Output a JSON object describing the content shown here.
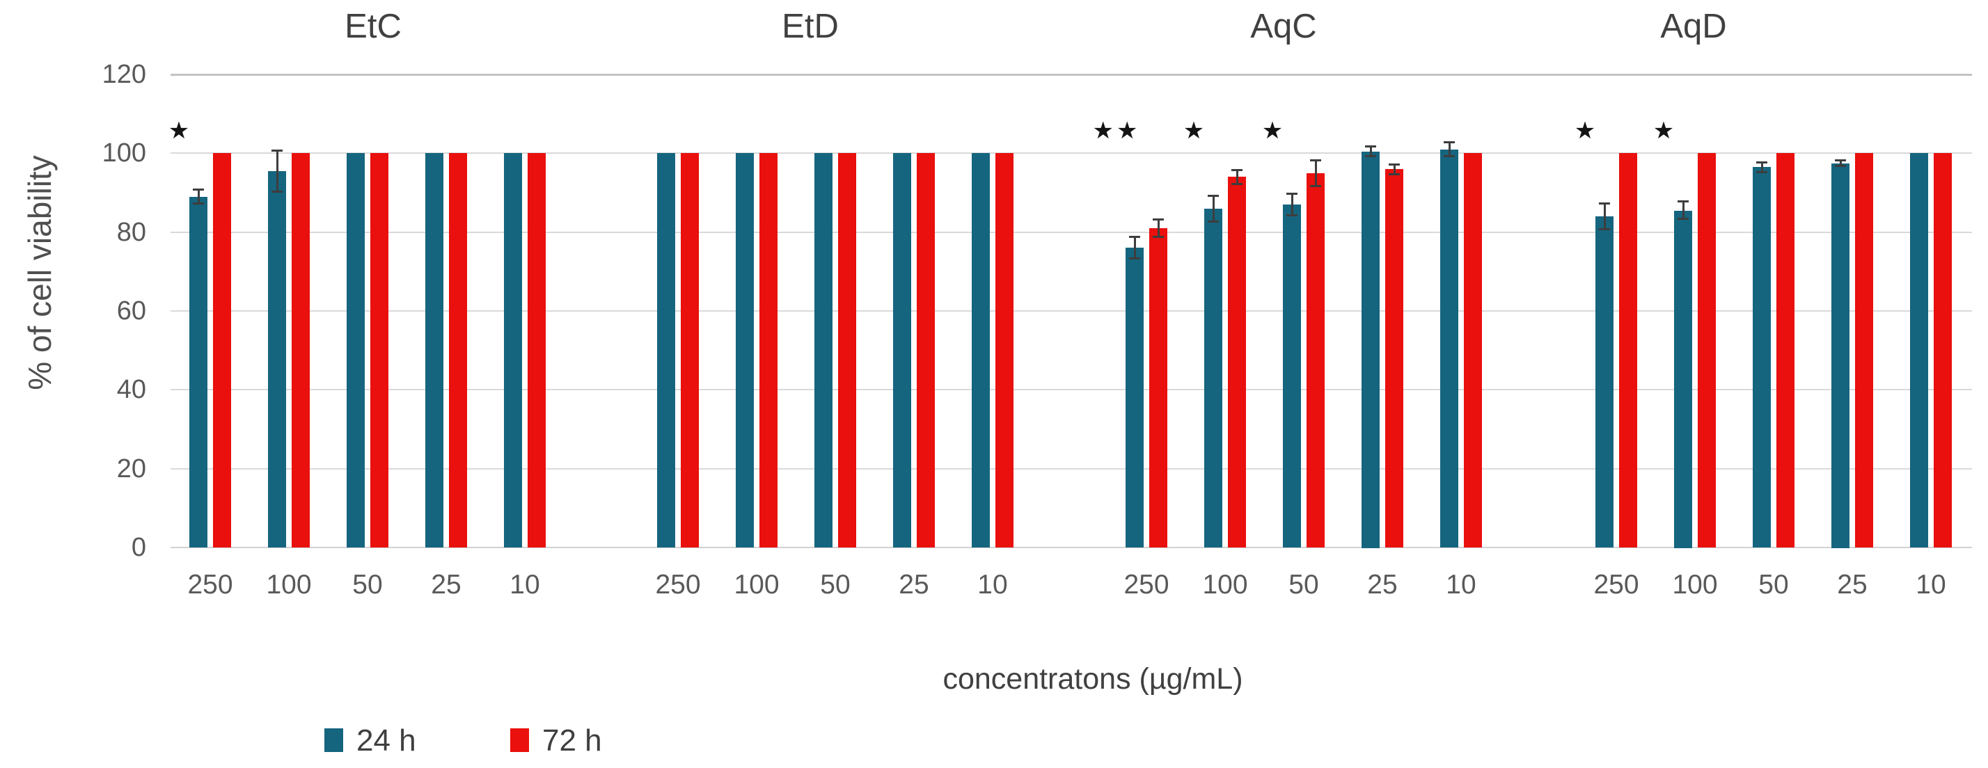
{
  "chart_data": {
    "type": "bar",
    "title": "",
    "ylabel": "% of cell viability",
    "xlabel": "concentratons (µg/mL)",
    "ylim": [
      0,
      120
    ],
    "yticks": [
      0,
      20,
      40,
      60,
      80,
      100,
      120
    ],
    "grid": true,
    "legend_position": "bottom-left",
    "significance_marker": "★",
    "series_names": [
      "24 h",
      "72 h"
    ],
    "series_colors": {
      "24 h": "#15657f",
      "72 h": "#e9100d"
    },
    "groups": [
      {
        "label": "EtC",
        "categories": [
          "250",
          "100",
          "50",
          "25",
          "10"
        ],
        "series": [
          {
            "name": "24 h",
            "values": [
              89,
              95.5,
              100,
              100,
              100
            ],
            "errors": [
              2,
              5.5,
              0,
              0,
              0
            ]
          },
          {
            "name": "72 h",
            "values": [
              100,
              100,
              100,
              100,
              100
            ],
            "errors": [
              0,
              0,
              0,
              0,
              0
            ]
          }
        ],
        "significance": [
          "*",
          "",
          "",
          "",
          ""
        ]
      },
      {
        "label": "EtD",
        "categories": [
          "250",
          "100",
          "50",
          "25",
          "10"
        ],
        "series": [
          {
            "name": "24 h",
            "values": [
              100,
              100,
              100,
              100,
              100
            ],
            "errors": [
              0,
              0,
              0,
              0,
              0
            ]
          },
          {
            "name": "72 h",
            "values": [
              100,
              100,
              100,
              100,
              100
            ],
            "errors": [
              0,
              0,
              0,
              0,
              0
            ]
          }
        ],
        "significance": [
          "",
          "",
          "",
          "",
          ""
        ]
      },
      {
        "label": "AqC",
        "categories": [
          "250",
          "100",
          "50",
          "25",
          "10"
        ],
        "series": [
          {
            "name": "24 h",
            "values": [
              76,
              86,
              87,
              100.5,
              101
            ],
            "errors": [
              3,
              3.5,
              3,
              1.5,
              2
            ]
          },
          {
            "name": "72 h",
            "values": [
              81,
              94,
              95,
              96,
              100
            ],
            "errors": [
              2.5,
              2,
              3.5,
              1.5,
              0
            ]
          }
        ],
        "significance": [
          "**",
          "*",
          "*",
          "",
          ""
        ]
      },
      {
        "label": "AqD",
        "categories": [
          "250",
          "100",
          "50",
          "25",
          "10"
        ],
        "series": [
          {
            "name": "24 h",
            "values": [
              84,
              85.5,
              96.5,
              97.5,
              100
            ],
            "errors": [
              3.5,
              2.5,
              1.5,
              1,
              0
            ]
          },
          {
            "name": "72 h",
            "values": [
              100,
              100,
              100,
              100,
              100
            ],
            "errors": [
              0,
              0,
              0,
              0,
              0
            ]
          }
        ],
        "significance": [
          "*",
          "*",
          "",
          "",
          ""
        ]
      }
    ]
  },
  "legend": {
    "items": [
      {
        "label": "24 h",
        "color": "#15657f"
      },
      {
        "label": "72 h",
        "color": "#e9100d"
      }
    ]
  }
}
